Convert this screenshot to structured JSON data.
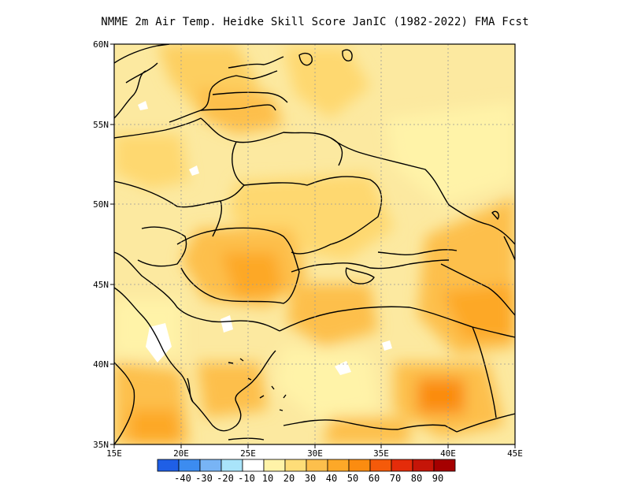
{
  "title": "NMME  2m Air Temp. Heidke Skill Score JanIC (1982-2022) FMA Fcst",
  "map": {
    "lon_range": [
      15,
      45
    ],
    "lat_range": [
      35,
      60
    ],
    "lat_ticks": [
      "35N",
      "40N",
      "45N",
      "50N",
      "55N",
      "60N"
    ],
    "lon_ticks": [
      "15E",
      "20E",
      "25E",
      "30E",
      "35E",
      "40E",
      "45E"
    ],
    "grid_lines": "dotted",
    "base_fill_color": "#fce9a0"
  },
  "colorbar": {
    "colors": [
      "#1f5fe6",
      "#3c8cf0",
      "#78b4f5",
      "#a9e4fa",
      "#ffffff",
      "#fff3a8",
      "#fedd78",
      "#fdbf4c",
      "#fda828",
      "#fb8c10",
      "#f55a0a",
      "#e42c0a",
      "#c51508",
      "#a50000"
    ],
    "labels": [
      "-40",
      "-30",
      "-20",
      "-10",
      "10",
      "20",
      "30",
      "40",
      "50",
      "60",
      "70",
      "80",
      "90"
    ]
  }
}
